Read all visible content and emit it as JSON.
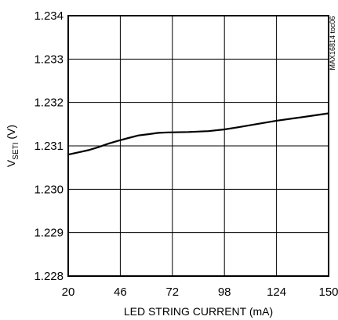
{
  "chart_data": {
    "type": "line",
    "title": "",
    "xlabel": "LED STRING CURRENT (mA)",
    "ylabel_main": "V",
    "ylabel_sub": "SETI",
    "ylabel_unit": " (V)",
    "xlim": [
      20,
      150
    ],
    "ylim": [
      1.228,
      1.234
    ],
    "x_ticks": [
      20,
      46,
      72,
      98,
      124,
      150
    ],
    "x_tick_labels": [
      "20",
      "46",
      "72",
      "98",
      "124",
      "150"
    ],
    "y_ticks": [
      1.228,
      1.229,
      1.23,
      1.231,
      1.232,
      1.233,
      1.234
    ],
    "y_tick_labels": [
      "1.228",
      "1.229",
      "1.230",
      "1.231",
      "1.232",
      "1.233",
      "1.234"
    ],
    "grid": true,
    "series": [
      {
        "x": [
          20,
          25,
          30,
          35,
          40,
          45,
          50,
          55,
          60,
          65,
          70,
          80,
          90,
          98,
          105,
          115,
          124,
          135,
          150
        ],
        "y": [
          1.2308,
          1.23085,
          1.2309,
          1.23097,
          1.23105,
          1.23112,
          1.23118,
          1.23124,
          1.23127,
          1.2313,
          1.23131,
          1.23132,
          1.23134,
          1.23138,
          1.23143,
          1.23151,
          1.23158,
          1.23165,
          1.23175
        ],
        "color": "#000000"
      }
    ],
    "side_note": "MAX16814 toc06"
  }
}
